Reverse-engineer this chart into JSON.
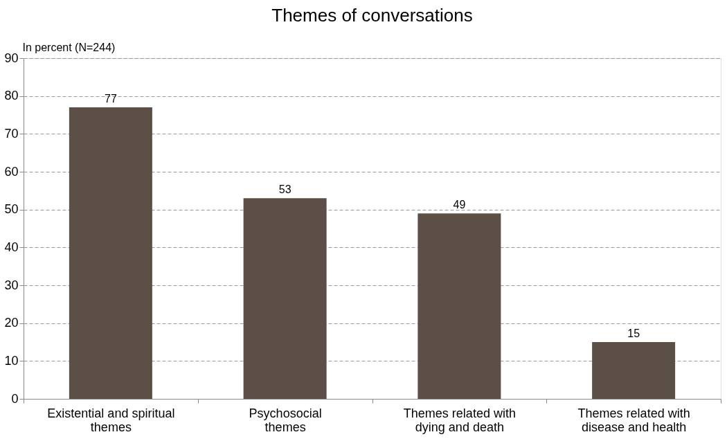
{
  "chart_data": {
    "type": "bar",
    "title": "Themes of conversations",
    "ylabel": "In percent (N=244)",
    "categories": [
      "Existential and spiritual\nthemes",
      "Psychosocial\nthemes",
      "Themes related with\ndying and death",
      "Themes related with\ndisease and health"
    ],
    "values": [
      77,
      53,
      49,
      15
    ],
    "color": "#5c4f47",
    "ylim": [
      0,
      90
    ],
    "yticks": [
      0,
      10,
      20,
      30,
      40,
      50,
      60,
      70,
      80,
      90
    ],
    "grid": "y",
    "data_labels": true
  }
}
